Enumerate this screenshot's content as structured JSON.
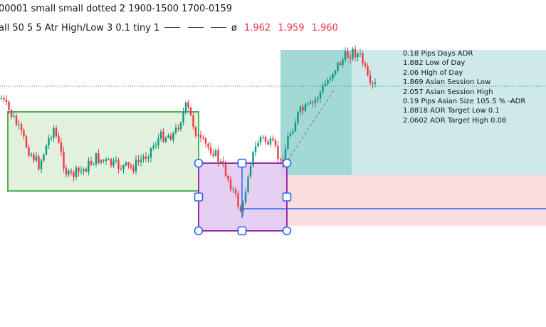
{
  "legend": {
    "line1": "00001 small small dotted 2 1900-1500 1700-0159",
    "line2": "all 50 5 5 Atr High/Low 3 0.1 tiny 1",
    "null_symbol": "ø",
    "values": [
      "1.962",
      "1.959",
      "1.960"
    ],
    "value_color": "#f23645"
  },
  "info_panel": [
    "0.18 Pips Days ADR",
    "1.882 Low of Day",
    "2.06 High of Day",
    "1.869 Asian Session Low",
    "2.057 Asian Session High",
    "0.19 Pips Asian Size 105.5 % -ADR",
    "1.8818 ADR Target Low 0.1",
    "2.0602 ADR Target High 0.08"
  ],
  "colors": {
    "up_candle": "#089981",
    "down_candle": "#f23645",
    "range_box_border": "#4caf50",
    "range_box_fill": "#d7ecd3",
    "selection_border": "#9c27b0",
    "selection_fill": "#e1c8ee",
    "handle": "#2962ff",
    "target_zone": "#b2dfdb",
    "stop_zone": "#fadbdc",
    "reference_line": "#2962ff",
    "dotted_level": "#089981"
  }
}
